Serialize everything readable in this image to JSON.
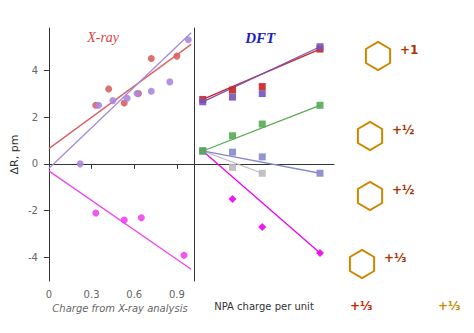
{
  "chart_data": [
    {
      "type": "scatter",
      "xlabel": "Charge from X-ray analysis",
      "ylabel": "ΔR, pm",
      "xlim": [
        -0.02,
        1.02
      ],
      "xticks": [
        0.0,
        0.3,
        0.6,
        0.9
      ],
      "ylim": [
        -5.0,
        5.8
      ],
      "yticks": [
        -4,
        -2,
        0,
        2,
        4
      ],
      "grid": false,
      "annotations": [
        {
          "text": "X-ray",
          "color": "#dd4444"
        }
      ],
      "series": [
        {
          "type": "line",
          "color": "#d96060",
          "x": [
            0.0,
            1.0
          ],
          "values": [
            0.65,
            5.1
          ]
        },
        {
          "type": "scatter",
          "marker": "circle",
          "color": "#d96060",
          "x": [
            0.33,
            0.42,
            0.53,
            0.63,
            0.72,
            0.9
          ],
          "values": [
            2.5,
            3.2,
            2.6,
            3.0,
            4.5,
            4.6
          ]
        },
        {
          "type": "line",
          "color": "#aa88dd",
          "x": [
            0.0,
            1.0
          ],
          "values": [
            -0.2,
            5.6
          ]
        },
        {
          "type": "scatter",
          "marker": "circle",
          "color": "#aa88dd",
          "x": [
            0.22,
            0.35,
            0.45,
            0.55,
            0.62,
            0.72,
            0.85,
            0.98
          ],
          "values": [
            0.0,
            2.5,
            2.7,
            2.8,
            3.0,
            3.1,
            3.5,
            5.3
          ]
        },
        {
          "type": "line",
          "color": "#ee44ee",
          "x": [
            0.0,
            1.0
          ],
          "values": [
            -0.3,
            -4.5
          ]
        },
        {
          "type": "scatter",
          "marker": "circle",
          "color": "#ee44ee",
          "x": [
            0.33,
            0.53,
            0.65,
            0.95
          ],
          "values": [
            -2.1,
            -2.4,
            -2.3,
            -3.9
          ]
        }
      ]
    },
    {
      "type": "scatter",
      "xlabel": "NPA charge per unit",
      "xlim": [
        0.28,
        1.08
      ],
      "ylim": [
        -5.0,
        5.8
      ],
      "grid": false,
      "tick_labels": false,
      "annotations": [
        {
          "text": "DFT",
          "color": "#2222bb"
        },
        {
          "text": "+1",
          "color": "#aa3300"
        },
        {
          "text": "+½",
          "color": "#aa3300"
        },
        {
          "text": "+½",
          "color": "#aa3300"
        },
        {
          "text": "+⅓",
          "color": "#aa3300"
        },
        {
          "text": "+⅓",
          "color": "#cc2200"
        },
        {
          "text": "+⅓",
          "color": "#cc8800"
        }
      ],
      "series": [
        {
          "type": "line",
          "color": "#cc2222",
          "x": [
            0.33,
            1.0
          ],
          "values": [
            2.75,
            4.9
          ]
        },
        {
          "type": "scatter",
          "marker": "square",
          "color": "#cc2222",
          "x": [
            0.33,
            0.5,
            0.67,
            1.0
          ],
          "values": [
            2.75,
            3.15,
            3.3,
            4.9
          ]
        },
        {
          "type": "line",
          "color": "#7755bb",
          "x": [
            0.33,
            1.0
          ],
          "values": [
            2.65,
            5.0
          ]
        },
        {
          "type": "scatter",
          "marker": "square",
          "color": "#7755bb",
          "x": [
            0.33,
            0.5,
            0.67,
            1.0
          ],
          "values": [
            2.65,
            2.85,
            3.0,
            5.0
          ]
        },
        {
          "type": "line",
          "color": "#ee00ee",
          "x": [
            0.33,
            1.0
          ],
          "values": [
            0.55,
            -3.8
          ]
        },
        {
          "type": "scatter",
          "marker": "diamond",
          "color": "#ee00ee",
          "x": [
            0.33,
            0.5,
            0.67,
            1.0
          ],
          "values": [
            0.55,
            -1.5,
            -2.7,
            -3.8
          ]
        },
        {
          "type": "line",
          "color": "#bbbbbb",
          "x": [
            0.33,
            0.67
          ],
          "values": [
            0.55,
            -0.4
          ]
        },
        {
          "type": "scatter",
          "marker": "square",
          "color": "#bbbbbb",
          "x": [
            0.33,
            0.5,
            0.67
          ],
          "values": [
            0.55,
            -0.15,
            -0.4
          ]
        },
        {
          "type": "line",
          "color": "#8888cc",
          "x": [
            0.33,
            1.0
          ],
          "values": [
            0.55,
            -0.4
          ]
        },
        {
          "type": "scatter",
          "marker": "square",
          "color": "#8888cc",
          "x": [
            0.33,
            0.5,
            0.67,
            1.0
          ],
          "values": [
            0.55,
            0.5,
            0.3,
            -0.4
          ]
        },
        {
          "type": "line",
          "color": "#55aa55",
          "x": [
            0.33,
            1.0
          ],
          "values": [
            0.55,
            2.5
          ]
        },
        {
          "type": "scatter",
          "marker": "square",
          "color": "#55aa55",
          "x": [
            0.33,
            0.5,
            0.67,
            1.0
          ],
          "values": [
            0.55,
            1.2,
            1.7,
            2.5
          ]
        }
      ]
    }
  ]
}
